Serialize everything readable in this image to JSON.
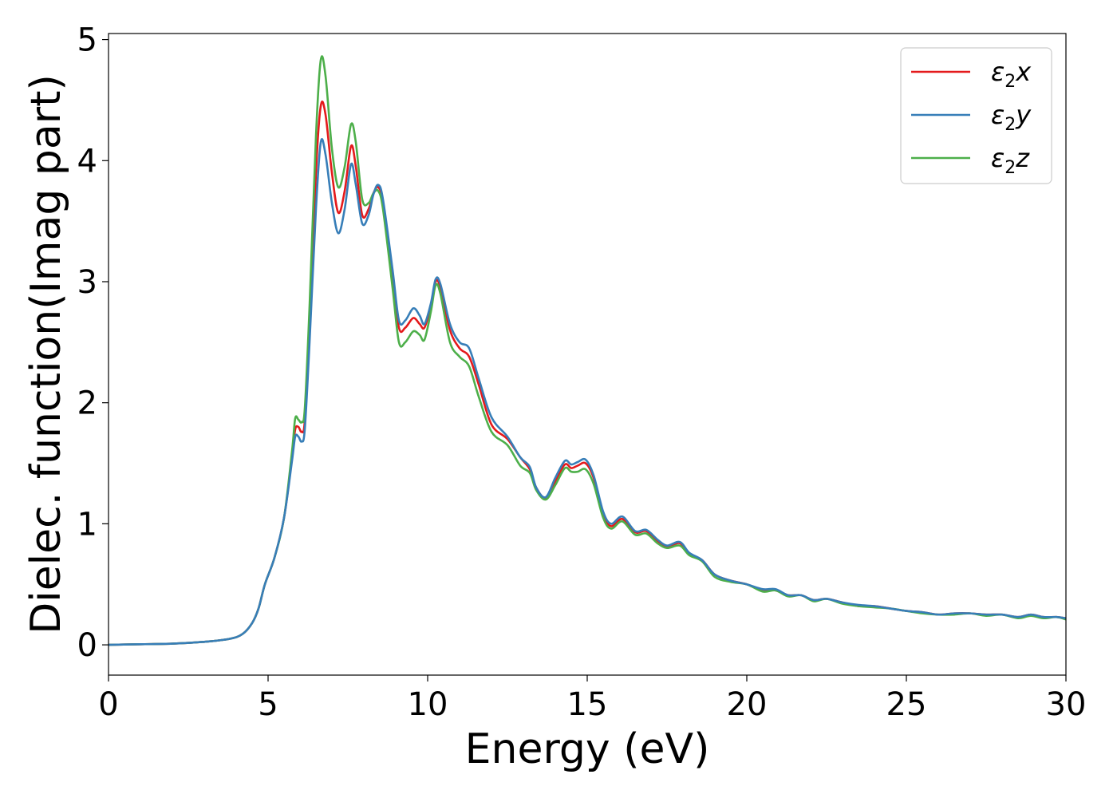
{
  "chart_data": {
    "type": "line",
    "title": "",
    "xlabel": "Energy (eV)",
    "ylabel": "Dielec. function(Imag part)",
    "xlim": [
      0,
      30
    ],
    "ylim": [
      -0.25,
      5.05
    ],
    "xticks": [
      0,
      5,
      10,
      15,
      20,
      25,
      30
    ],
    "yticks": [
      0,
      1,
      2,
      3,
      4,
      5
    ],
    "grid": false,
    "legend_position": "top-right",
    "series": [
      {
        "name": "ε₂x",
        "legend": {
          "base": "ε",
          "sub": "2",
          "suffix": "x"
        },
        "color": "#e41a1c",
        "points": [
          [
            0,
            0
          ],
          [
            1,
            0.005
          ],
          [
            2,
            0.01
          ],
          [
            3,
            0.025
          ],
          [
            3.8,
            0.05
          ],
          [
            4.2,
            0.09
          ],
          [
            4.5,
            0.18
          ],
          [
            4.7,
            0.3
          ],
          [
            4.9,
            0.5
          ],
          [
            5.2,
            0.72
          ],
          [
            5.5,
            1.05
          ],
          [
            5.75,
            1.55
          ],
          [
            5.85,
            1.78
          ],
          [
            5.95,
            1.8
          ],
          [
            6.05,
            1.76
          ],
          [
            6.15,
            1.85
          ],
          [
            6.3,
            2.6
          ],
          [
            6.5,
            3.9
          ],
          [
            6.65,
            4.45
          ],
          [
            6.8,
            4.38
          ],
          [
            7.0,
            3.9
          ],
          [
            7.2,
            3.57
          ],
          [
            7.4,
            3.75
          ],
          [
            7.6,
            4.12
          ],
          [
            7.75,
            3.95
          ],
          [
            7.95,
            3.55
          ],
          [
            8.15,
            3.6
          ],
          [
            8.3,
            3.73
          ],
          [
            8.45,
            3.78
          ],
          [
            8.6,
            3.65
          ],
          [
            8.9,
            3.05
          ],
          [
            9.1,
            2.62
          ],
          [
            9.3,
            2.62
          ],
          [
            9.55,
            2.7
          ],
          [
            9.75,
            2.65
          ],
          [
            9.9,
            2.62
          ],
          [
            10.1,
            2.8
          ],
          [
            10.25,
            3.0
          ],
          [
            10.4,
            2.95
          ],
          [
            10.7,
            2.6
          ],
          [
            11.0,
            2.45
          ],
          [
            11.3,
            2.38
          ],
          [
            11.6,
            2.15
          ],
          [
            12.0,
            1.82
          ],
          [
            12.5,
            1.7
          ],
          [
            12.9,
            1.55
          ],
          [
            13.2,
            1.45
          ],
          [
            13.4,
            1.3
          ],
          [
            13.7,
            1.21
          ],
          [
            14.0,
            1.35
          ],
          [
            14.3,
            1.49
          ],
          [
            14.5,
            1.46
          ],
          [
            14.7,
            1.48
          ],
          [
            14.95,
            1.5
          ],
          [
            15.2,
            1.38
          ],
          [
            15.5,
            1.08
          ],
          [
            15.75,
            0.98
          ],
          [
            16.1,
            1.04
          ],
          [
            16.5,
            0.93
          ],
          [
            16.85,
            0.94
          ],
          [
            17.2,
            0.86
          ],
          [
            17.5,
            0.81
          ],
          [
            17.9,
            0.84
          ],
          [
            18.2,
            0.75
          ],
          [
            18.6,
            0.7
          ],
          [
            19.0,
            0.58
          ],
          [
            19.5,
            0.53
          ],
          [
            20.0,
            0.5
          ],
          [
            20.5,
            0.45
          ],
          [
            20.9,
            0.45
          ],
          [
            21.3,
            0.41
          ],
          [
            21.7,
            0.41
          ],
          [
            22.1,
            0.37
          ],
          [
            22.5,
            0.38
          ],
          [
            23.0,
            0.35
          ],
          [
            23.5,
            0.32
          ],
          [
            24.0,
            0.32
          ],
          [
            24.5,
            0.3
          ],
          [
            25.0,
            0.28
          ],
          [
            25.5,
            0.27
          ],
          [
            26.0,
            0.25
          ],
          [
            26.5,
            0.26
          ],
          [
            27.0,
            0.26
          ],
          [
            27.5,
            0.25
          ],
          [
            28.0,
            0.25
          ],
          [
            28.5,
            0.23
          ],
          [
            28.9,
            0.25
          ],
          [
            29.3,
            0.23
          ],
          [
            29.7,
            0.23
          ],
          [
            30.0,
            0.22
          ]
        ]
      },
      {
        "name": "ε₂y",
        "legend": {
          "base": "ε",
          "sub": "2",
          "suffix": "y"
        },
        "color": "#377eb8",
        "points": [
          [
            0,
            0
          ],
          [
            1,
            0.005
          ],
          [
            2,
            0.01
          ],
          [
            3,
            0.025
          ],
          [
            3.8,
            0.05
          ],
          [
            4.2,
            0.09
          ],
          [
            4.5,
            0.18
          ],
          [
            4.7,
            0.3
          ],
          [
            4.9,
            0.5
          ],
          [
            5.2,
            0.72
          ],
          [
            5.5,
            1.05
          ],
          [
            5.75,
            1.52
          ],
          [
            5.85,
            1.72
          ],
          [
            5.95,
            1.72
          ],
          [
            6.05,
            1.68
          ],
          [
            6.15,
            1.78
          ],
          [
            6.3,
            2.5
          ],
          [
            6.5,
            3.6
          ],
          [
            6.65,
            4.15
          ],
          [
            6.8,
            4.05
          ],
          [
            7.0,
            3.65
          ],
          [
            7.2,
            3.4
          ],
          [
            7.4,
            3.6
          ],
          [
            7.6,
            3.97
          ],
          [
            7.75,
            3.8
          ],
          [
            7.95,
            3.48
          ],
          [
            8.15,
            3.55
          ],
          [
            8.3,
            3.72
          ],
          [
            8.45,
            3.8
          ],
          [
            8.6,
            3.68
          ],
          [
            8.9,
            3.1
          ],
          [
            9.1,
            2.68
          ],
          [
            9.3,
            2.68
          ],
          [
            9.55,
            2.78
          ],
          [
            9.75,
            2.72
          ],
          [
            9.9,
            2.65
          ],
          [
            10.1,
            2.82
          ],
          [
            10.25,
            3.02
          ],
          [
            10.4,
            2.98
          ],
          [
            10.7,
            2.65
          ],
          [
            11.0,
            2.5
          ],
          [
            11.3,
            2.45
          ],
          [
            11.6,
            2.2
          ],
          [
            12.0,
            1.88
          ],
          [
            12.5,
            1.72
          ],
          [
            12.9,
            1.55
          ],
          [
            13.2,
            1.47
          ],
          [
            13.4,
            1.3
          ],
          [
            13.7,
            1.22
          ],
          [
            14.0,
            1.38
          ],
          [
            14.3,
            1.52
          ],
          [
            14.5,
            1.49
          ],
          [
            14.7,
            1.51
          ],
          [
            14.95,
            1.53
          ],
          [
            15.2,
            1.4
          ],
          [
            15.5,
            1.1
          ],
          [
            15.75,
            1.0
          ],
          [
            16.1,
            1.06
          ],
          [
            16.5,
            0.94
          ],
          [
            16.85,
            0.95
          ],
          [
            17.2,
            0.87
          ],
          [
            17.5,
            0.82
          ],
          [
            17.9,
            0.85
          ],
          [
            18.2,
            0.76
          ],
          [
            18.6,
            0.7
          ],
          [
            19.0,
            0.58
          ],
          [
            19.5,
            0.53
          ],
          [
            20.0,
            0.5
          ],
          [
            20.5,
            0.46
          ],
          [
            20.9,
            0.46
          ],
          [
            21.3,
            0.41
          ],
          [
            21.7,
            0.41
          ],
          [
            22.1,
            0.37
          ],
          [
            22.5,
            0.38
          ],
          [
            23.0,
            0.35
          ],
          [
            23.5,
            0.33
          ],
          [
            24.0,
            0.32
          ],
          [
            24.5,
            0.3
          ],
          [
            25.0,
            0.28
          ],
          [
            25.5,
            0.27
          ],
          [
            26.0,
            0.25
          ],
          [
            26.5,
            0.26
          ],
          [
            27.0,
            0.26
          ],
          [
            27.5,
            0.25
          ],
          [
            28.0,
            0.25
          ],
          [
            28.5,
            0.23
          ],
          [
            28.9,
            0.25
          ],
          [
            29.3,
            0.23
          ],
          [
            29.7,
            0.23
          ],
          [
            30.0,
            0.22
          ]
        ]
      },
      {
        "name": "ε₂z",
        "legend": {
          "base": "ε",
          "sub": "2",
          "suffix": "z"
        },
        "color": "#4daf4a",
        "points": [
          [
            0,
            0
          ],
          [
            1,
            0.005
          ],
          [
            2,
            0.01
          ],
          [
            3,
            0.025
          ],
          [
            3.8,
            0.05
          ],
          [
            4.2,
            0.09
          ],
          [
            4.5,
            0.18
          ],
          [
            4.7,
            0.3
          ],
          [
            4.9,
            0.5
          ],
          [
            5.2,
            0.72
          ],
          [
            5.5,
            1.05
          ],
          [
            5.75,
            1.6
          ],
          [
            5.85,
            1.87
          ],
          [
            5.95,
            1.86
          ],
          [
            6.05,
            1.84
          ],
          [
            6.15,
            1.95
          ],
          [
            6.3,
            2.8
          ],
          [
            6.5,
            4.2
          ],
          [
            6.65,
            4.83
          ],
          [
            6.8,
            4.7
          ],
          [
            7.0,
            4.1
          ],
          [
            7.2,
            3.78
          ],
          [
            7.4,
            3.95
          ],
          [
            7.6,
            4.3
          ],
          [
            7.75,
            4.15
          ],
          [
            7.95,
            3.68
          ],
          [
            8.15,
            3.65
          ],
          [
            8.3,
            3.73
          ],
          [
            8.45,
            3.75
          ],
          [
            8.6,
            3.6
          ],
          [
            8.9,
            2.95
          ],
          [
            9.1,
            2.5
          ],
          [
            9.3,
            2.5
          ],
          [
            9.55,
            2.59
          ],
          [
            9.75,
            2.56
          ],
          [
            9.9,
            2.52
          ],
          [
            10.1,
            2.75
          ],
          [
            10.25,
            2.97
          ],
          [
            10.4,
            2.9
          ],
          [
            10.7,
            2.5
          ],
          [
            11.0,
            2.38
          ],
          [
            11.3,
            2.3
          ],
          [
            11.6,
            2.05
          ],
          [
            12.0,
            1.76
          ],
          [
            12.5,
            1.65
          ],
          [
            12.9,
            1.48
          ],
          [
            13.2,
            1.42
          ],
          [
            13.4,
            1.28
          ],
          [
            13.7,
            1.2
          ],
          [
            14.0,
            1.32
          ],
          [
            14.3,
            1.46
          ],
          [
            14.5,
            1.43
          ],
          [
            14.7,
            1.43
          ],
          [
            14.95,
            1.45
          ],
          [
            15.2,
            1.33
          ],
          [
            15.5,
            1.05
          ],
          [
            15.75,
            0.96
          ],
          [
            16.1,
            1.02
          ],
          [
            16.5,
            0.91
          ],
          [
            16.85,
            0.92
          ],
          [
            17.2,
            0.84
          ],
          [
            17.5,
            0.8
          ],
          [
            17.9,
            0.82
          ],
          [
            18.2,
            0.74
          ],
          [
            18.6,
            0.69
          ],
          [
            19.0,
            0.56
          ],
          [
            19.5,
            0.52
          ],
          [
            20.0,
            0.5
          ],
          [
            20.5,
            0.44
          ],
          [
            20.9,
            0.45
          ],
          [
            21.3,
            0.4
          ],
          [
            21.7,
            0.41
          ],
          [
            22.1,
            0.36
          ],
          [
            22.5,
            0.38
          ],
          [
            23.0,
            0.34
          ],
          [
            23.5,
            0.32
          ],
          [
            24.0,
            0.31
          ],
          [
            24.5,
            0.3
          ],
          [
            25.0,
            0.28
          ],
          [
            25.5,
            0.26
          ],
          [
            26.0,
            0.25
          ],
          [
            26.5,
            0.25
          ],
          [
            27.0,
            0.26
          ],
          [
            27.5,
            0.24
          ],
          [
            28.0,
            0.25
          ],
          [
            28.5,
            0.22
          ],
          [
            28.9,
            0.24
          ],
          [
            29.3,
            0.22
          ],
          [
            29.7,
            0.23
          ],
          [
            30.0,
            0.21
          ]
        ]
      }
    ]
  }
}
